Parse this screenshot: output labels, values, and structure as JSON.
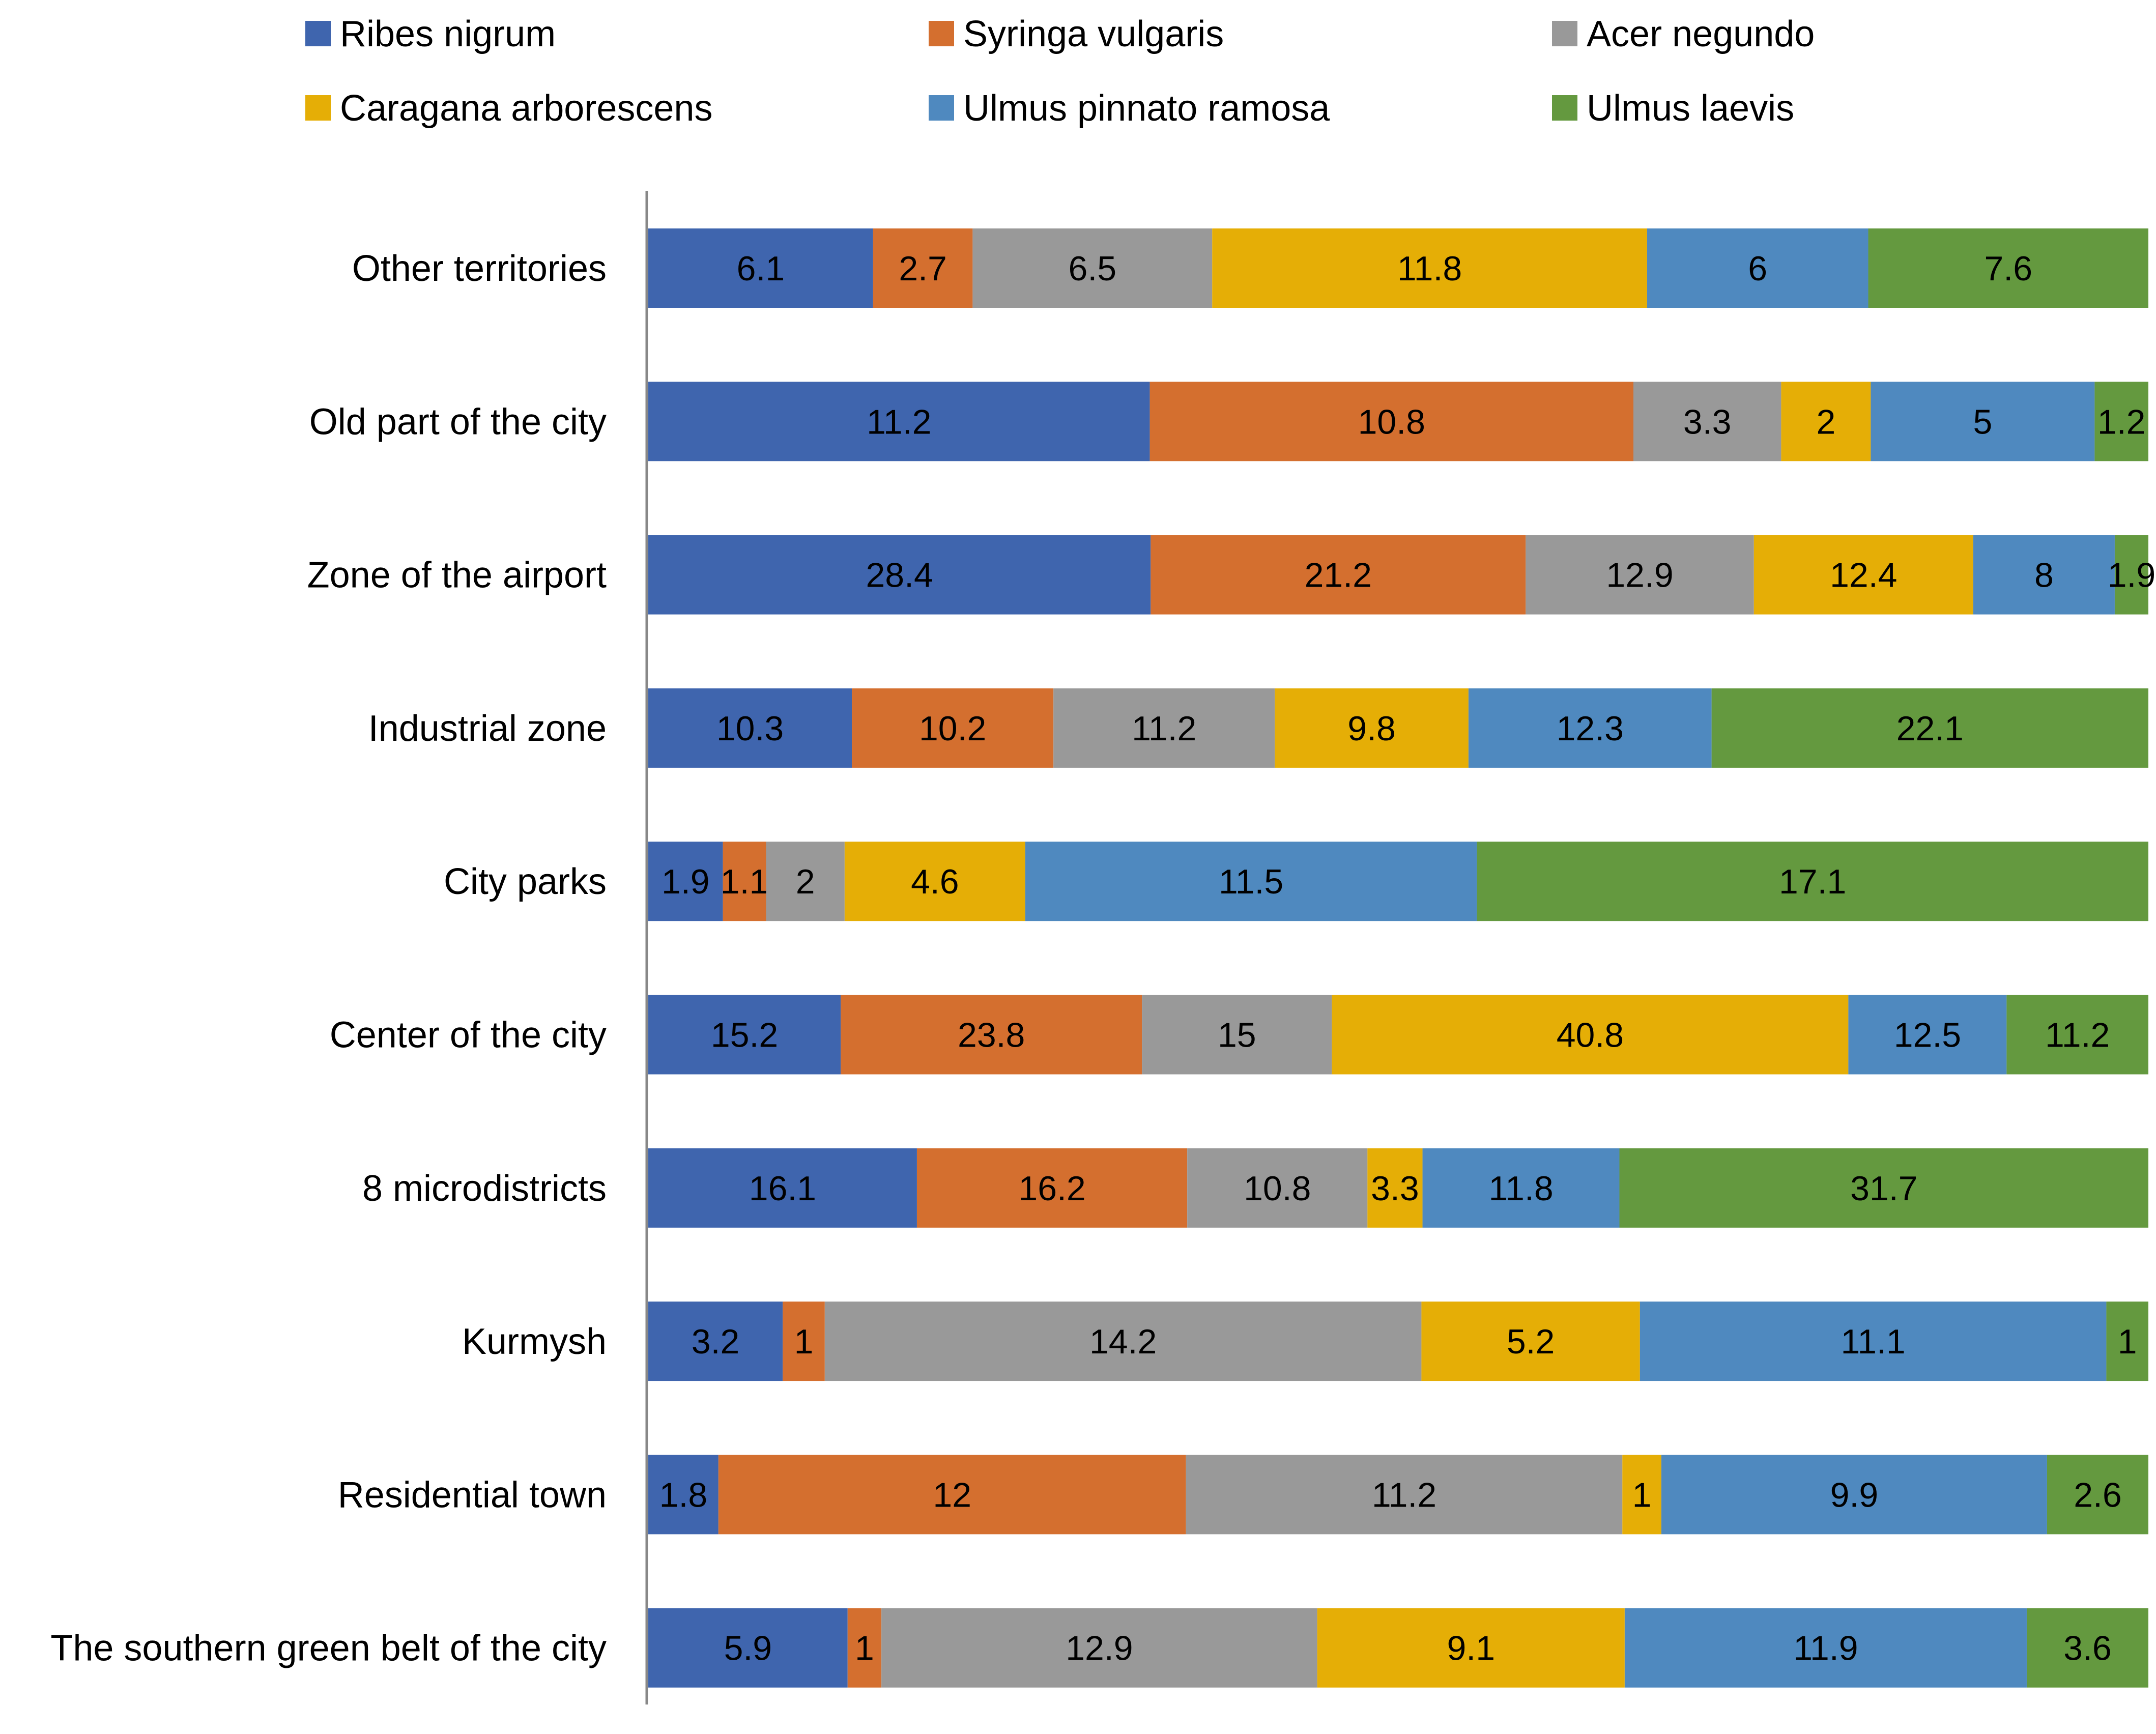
{
  "chart_data": {
    "type": "bar",
    "orientation": "horizontal",
    "stacked": "percent",
    "categories": [
      "Other territories",
      "Old part of the city",
      "Zone of the airport",
      "Industrial zone",
      "City parks",
      "Center of the city",
      "8 microdistricts",
      "Kurmysh",
      "Residential town",
      "The southern green belt of the city"
    ],
    "series": [
      {
        "name": "Ribes nigrum",
        "color": "#3F65AE",
        "values": [
          6.1,
          11.2,
          28.4,
          10.3,
          1.9,
          15.2,
          16.1,
          3.2,
          1.8,
          5.9
        ]
      },
      {
        "name": "Syringa vulgaris",
        "color": "#D46F2F",
        "values": [
          2.7,
          10.8,
          21.2,
          10.2,
          1.1,
          23.8,
          16.2,
          1,
          12,
          1
        ]
      },
      {
        "name": "Acer negundo",
        "color": "#999999",
        "values": [
          6.5,
          3.3,
          12.9,
          11.2,
          2,
          15,
          10.8,
          14.2,
          11.2,
          12.9
        ]
      },
      {
        "name": "Caragana arborescens",
        "color": "#E5AE06",
        "values": [
          11.8,
          2,
          12.4,
          9.8,
          4.6,
          40.8,
          3.3,
          5.2,
          1,
          9.1
        ]
      },
      {
        "name": "Ulmus pinnato ramosa",
        "color": "#4F89BF",
        "values": [
          6,
          5,
          8,
          12.3,
          11.5,
          12.5,
          11.8,
          11.1,
          9.9,
          11.9
        ]
      },
      {
        "name": "Ulmus laevis",
        "color": "#64993F",
        "values": [
          7.6,
          1.2,
          1.9,
          22.1,
          17.1,
          11.2,
          31.7,
          1,
          2.6,
          3.6
        ]
      }
    ],
    "legend_position": "top",
    "title": "",
    "xlabel": "",
    "ylabel": "",
    "grid": false
  }
}
